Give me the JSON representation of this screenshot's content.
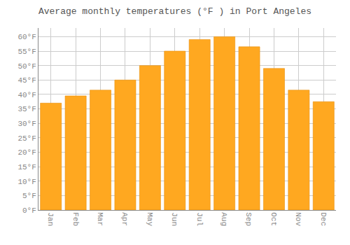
{
  "chart_data": {
    "type": "bar",
    "title": "Average monthly temperatures (°F ) in Port Angeles",
    "categories": [
      "Jan",
      "Feb",
      "Mar",
      "Apr",
      "May",
      "Jun",
      "Jul",
      "Aug",
      "Sep",
      "Oct",
      "Nov",
      "Dec"
    ],
    "values": [
      37,
      39.5,
      41.5,
      45,
      50,
      55,
      59,
      60,
      56.5,
      49,
      41.5,
      37.5
    ],
    "color": "#FFA820",
    "ylim": [
      0,
      63
    ],
    "yticks": [
      {
        "value": 0,
        "label": "0°F"
      },
      {
        "value": 5,
        "label": "5°F"
      },
      {
        "value": 10,
        "label": "10°F"
      },
      {
        "value": 15,
        "label": "15°F"
      },
      {
        "value": 20,
        "label": "20°F"
      },
      {
        "value": 25,
        "label": "25°F"
      },
      {
        "value": 30,
        "label": "30°F"
      },
      {
        "value": 35,
        "label": "35°F"
      },
      {
        "value": 40,
        "label": "40°F"
      },
      {
        "value": 45,
        "label": "45°F"
      },
      {
        "value": 50,
        "label": "50°F"
      },
      {
        "value": 55,
        "label": "55°F"
      },
      {
        "value": 60,
        "label": "60°F"
      }
    ],
    "grid": true
  }
}
